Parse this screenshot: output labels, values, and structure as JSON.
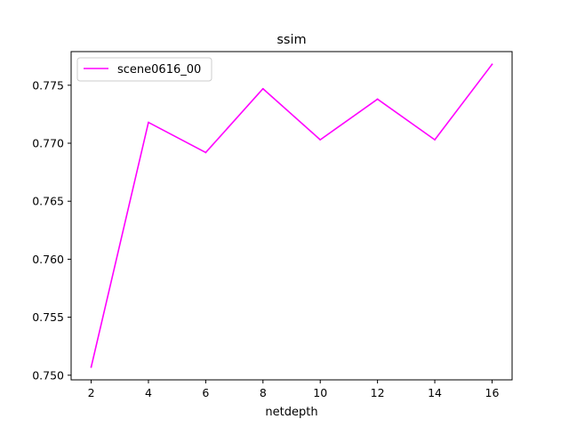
{
  "chart_data": {
    "type": "line",
    "title": "ssim",
    "xlabel": "netdepth",
    "ylabel": "",
    "x": [
      2,
      4,
      6,
      8,
      10,
      12,
      14,
      16
    ],
    "series": [
      {
        "name": "scene0616_00",
        "color": "#ff00ff",
        "values": [
          0.7507,
          0.7718,
          0.7692,
          0.7747,
          0.7703,
          0.7738,
          0.7703,
          0.7768
        ]
      }
    ],
    "xticks": [
      "2",
      "4",
      "6",
      "8",
      "10",
      "12",
      "14",
      "16"
    ],
    "yticks": [
      "0.750",
      "0.755",
      "0.760",
      "0.765",
      "0.770",
      "0.775"
    ],
    "xlim": [
      1.3,
      16.7
    ],
    "ylim": [
      0.7496,
      0.7779
    ],
    "grid": false,
    "legend_position": "top-left"
  }
}
